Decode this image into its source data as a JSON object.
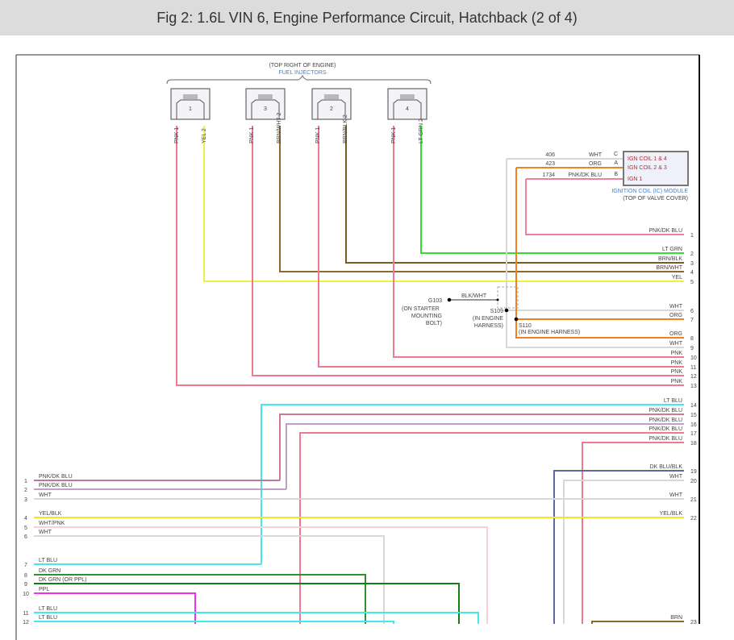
{
  "title": "Fig 2: 1.6L VIN 6, Engine Performance Circuit, Hatchback (2 of 4)",
  "injectors": {
    "location": "(TOP RIGHT OF ENGINE)",
    "name": "FUEL INJECTORS",
    "items": [
      {
        "num": "1",
        "pin1": "PNK  1",
        "pin2": "YEL  2",
        "color1": "#f07890",
        "color2": "#f0f040"
      },
      {
        "num": "3",
        "pin1": "PNK  1",
        "pin2": "BRN/WHT  2",
        "color1": "#f07890",
        "color2": "#8b6a2b"
      },
      {
        "num": "2",
        "pin1": "PNK  1",
        "pin2": "BRN/BLK  2",
        "color1": "#f07890",
        "color2": "#7a5a20"
      },
      {
        "num": "4",
        "pin1": "PNK  1",
        "pin2": "LT GRN  2",
        "color1": "#f07890",
        "color2": "#30e030"
      }
    ]
  },
  "coil_module": {
    "name": "IGNITION COIL (IC) MODULE",
    "location": "(TOP OF VALVE COVER)",
    "pins": [
      {
        "circuit": "406",
        "color_name": "WHT",
        "pin": "C",
        "label": "IGN COIL 1 & 4"
      },
      {
        "circuit": "423",
        "color_name": "ORG",
        "pin": "A",
        "label": "IGN COIL 2 & 3"
      },
      {
        "circuit": "1734",
        "color_name": "PNK/DK BLU",
        "pin": "B",
        "label": "IGN 1"
      }
    ]
  },
  "ground": {
    "id": "G103",
    "wire": "BLK/WHT",
    "location_lines": [
      "(ON STARTER",
      "MOUNTING",
      "BOLT)"
    ]
  },
  "splices": [
    {
      "id": "S109",
      "location_lines": [
        "(IN ENGINE",
        "HARNESS)"
      ]
    },
    {
      "id": "S110",
      "location": "(IN ENGINE HARNESS)"
    }
  ],
  "right_wires": [
    {
      "num": "1",
      "label": "PNK/DK BLU",
      "color": "#f080a0"
    },
    {
      "num": "2",
      "label": "LT GRN",
      "color": "#30e030"
    },
    {
      "num": "3",
      "label": "BRN/BLK",
      "color": "#7a5a20"
    },
    {
      "num": "4",
      "label": "BRN/WHT",
      "color": "#8b6a2b"
    },
    {
      "num": "5",
      "label": "YEL",
      "color": "#f0f040"
    },
    {
      "num": "6",
      "label": "WHT",
      "color": "#d8d8d8"
    },
    {
      "num": "7",
      "label": "ORG",
      "color": "#f08020"
    },
    {
      "num": "8",
      "label": "ORG",
      "color": "#f08020"
    },
    {
      "num": "9",
      "label": "WHT",
      "color": "#d8d8d8"
    },
    {
      "num": "10",
      "label": "PNK",
      "color": "#f07890"
    },
    {
      "num": "11",
      "label": "PNK",
      "color": "#f07890"
    },
    {
      "num": "12",
      "label": "PNK",
      "color": "#f07890"
    },
    {
      "num": "13",
      "label": "PNK",
      "color": "#f07890"
    },
    {
      "num": "14",
      "label": "LT BLU",
      "color": "#40e8f0"
    },
    {
      "num": "15",
      "label": "PNK/DK BLU",
      "color": "#d07890"
    },
    {
      "num": "16",
      "label": "PNK/DK BLU",
      "color": "#c0a0c8"
    },
    {
      "num": "17",
      "label": "PNK/DK BLU",
      "color": "#f07890"
    },
    {
      "num": "18",
      "label": "PNK/DK BLU",
      "color": "#f07890"
    },
    {
      "num": "19",
      "label": "DK BLU/BLK",
      "color": "#5a6aa8"
    },
    {
      "num": "20",
      "label": "WHT",
      "color": "#d8d8d8"
    },
    {
      "num": "21",
      "label": "WHT",
      "color": "#d8d8d8"
    },
    {
      "num": "22",
      "label": "YEL/BLK",
      "color": "#f0e820"
    },
    {
      "num": "23",
      "label": "BRN",
      "color": "#8b6a2b"
    }
  ],
  "left_wires": [
    {
      "num": "1",
      "label": "PNK/DK BLU",
      "color": "#c07898"
    },
    {
      "num": "2",
      "label": "PNK/DK BLU",
      "color": "#c0a0c8"
    },
    {
      "num": "3",
      "label": "WHT",
      "color": "#d8d8d8"
    },
    {
      "num": "4",
      "label": "YEL/BLK",
      "color": "#f0e820"
    },
    {
      "num": "5",
      "label": "WHT/PNK",
      "color": "#f8d0d8"
    },
    {
      "num": "6",
      "label": "WHT",
      "color": "#d8d8d8"
    },
    {
      "num": "7",
      "label": "LT BLU",
      "color": "#40e8f0"
    },
    {
      "num": "8",
      "label": "DK GRN",
      "color": "#309030"
    },
    {
      "num": "9",
      "label": "DK GRN    (OR PPL)",
      "color": "#108010"
    },
    {
      "num": "10",
      "label": "PPL",
      "color": "#f030f0"
    },
    {
      "num": "11",
      "label": "LT BLU",
      "color": "#40e8f0"
    },
    {
      "num": "12",
      "label": "LT BLU",
      "color": "#40e8f0"
    }
  ]
}
